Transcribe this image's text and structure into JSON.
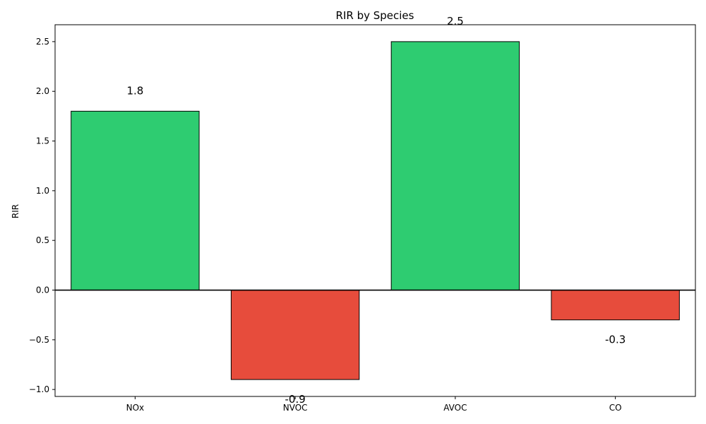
{
  "chart_data": {
    "type": "bar",
    "title": "RIR by Species",
    "xlabel": "",
    "ylabel": "RIR",
    "categories": [
      "NOx",
      "NVOC",
      "AVOC",
      "CO"
    ],
    "values": [
      1.8,
      -0.9,
      2.5,
      -0.3
    ],
    "value_labels": [
      "1.8",
      "-0.9",
      "2.5",
      "-0.3"
    ],
    "ylim": [
      -1.07,
      2.67
    ],
    "yticks": [
      -1.0,
      -0.5,
      0.0,
      0.5,
      1.0,
      1.5,
      2.0,
      2.5
    ],
    "ytick_labels": [
      "−1.0",
      "−0.5",
      "0.0",
      "0.5",
      "1.0",
      "1.5",
      "2.0",
      "2.5"
    ],
    "grid": false,
    "legend": "none",
    "colors": {
      "positive": "#2ecc71",
      "negative": "#e74c3c",
      "edge": "#000000",
      "zero_line": "#000000"
    }
  }
}
